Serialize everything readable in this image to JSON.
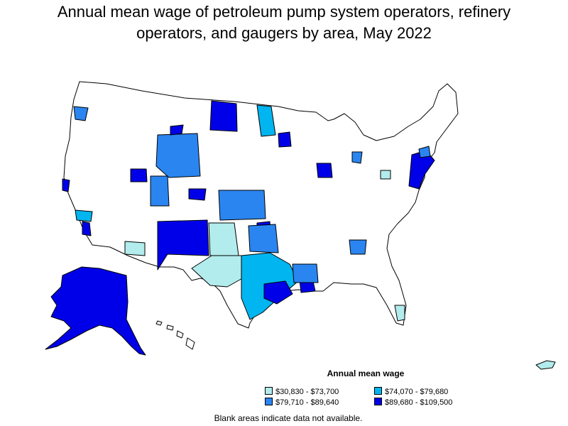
{
  "title_lines": [
    "Annual mean wage of petroleum pump system operators, refinery",
    "operators, and gaugers by area, May 2022"
  ],
  "legend": {
    "title": "Annual mean wage",
    "items": [
      {
        "label": "$30,830 - $73,700",
        "color": "#b2ecec"
      },
      {
        "label": "$74,070 - $79,680",
        "color": "#00b5f0"
      },
      {
        "label": "$79,710 - $89,640",
        "color": "#2a85f0"
      },
      {
        "label": "$89,680 - $109,500",
        "color": "#0000e8"
      }
    ]
  },
  "footnote": "Blank areas indicate data not available.",
  "map": {
    "type": "choropleth",
    "region": "United States (metropolitan and nonmetropolitan areas)",
    "no_data_color": "#ffffff",
    "border_color": "#000000"
  }
}
